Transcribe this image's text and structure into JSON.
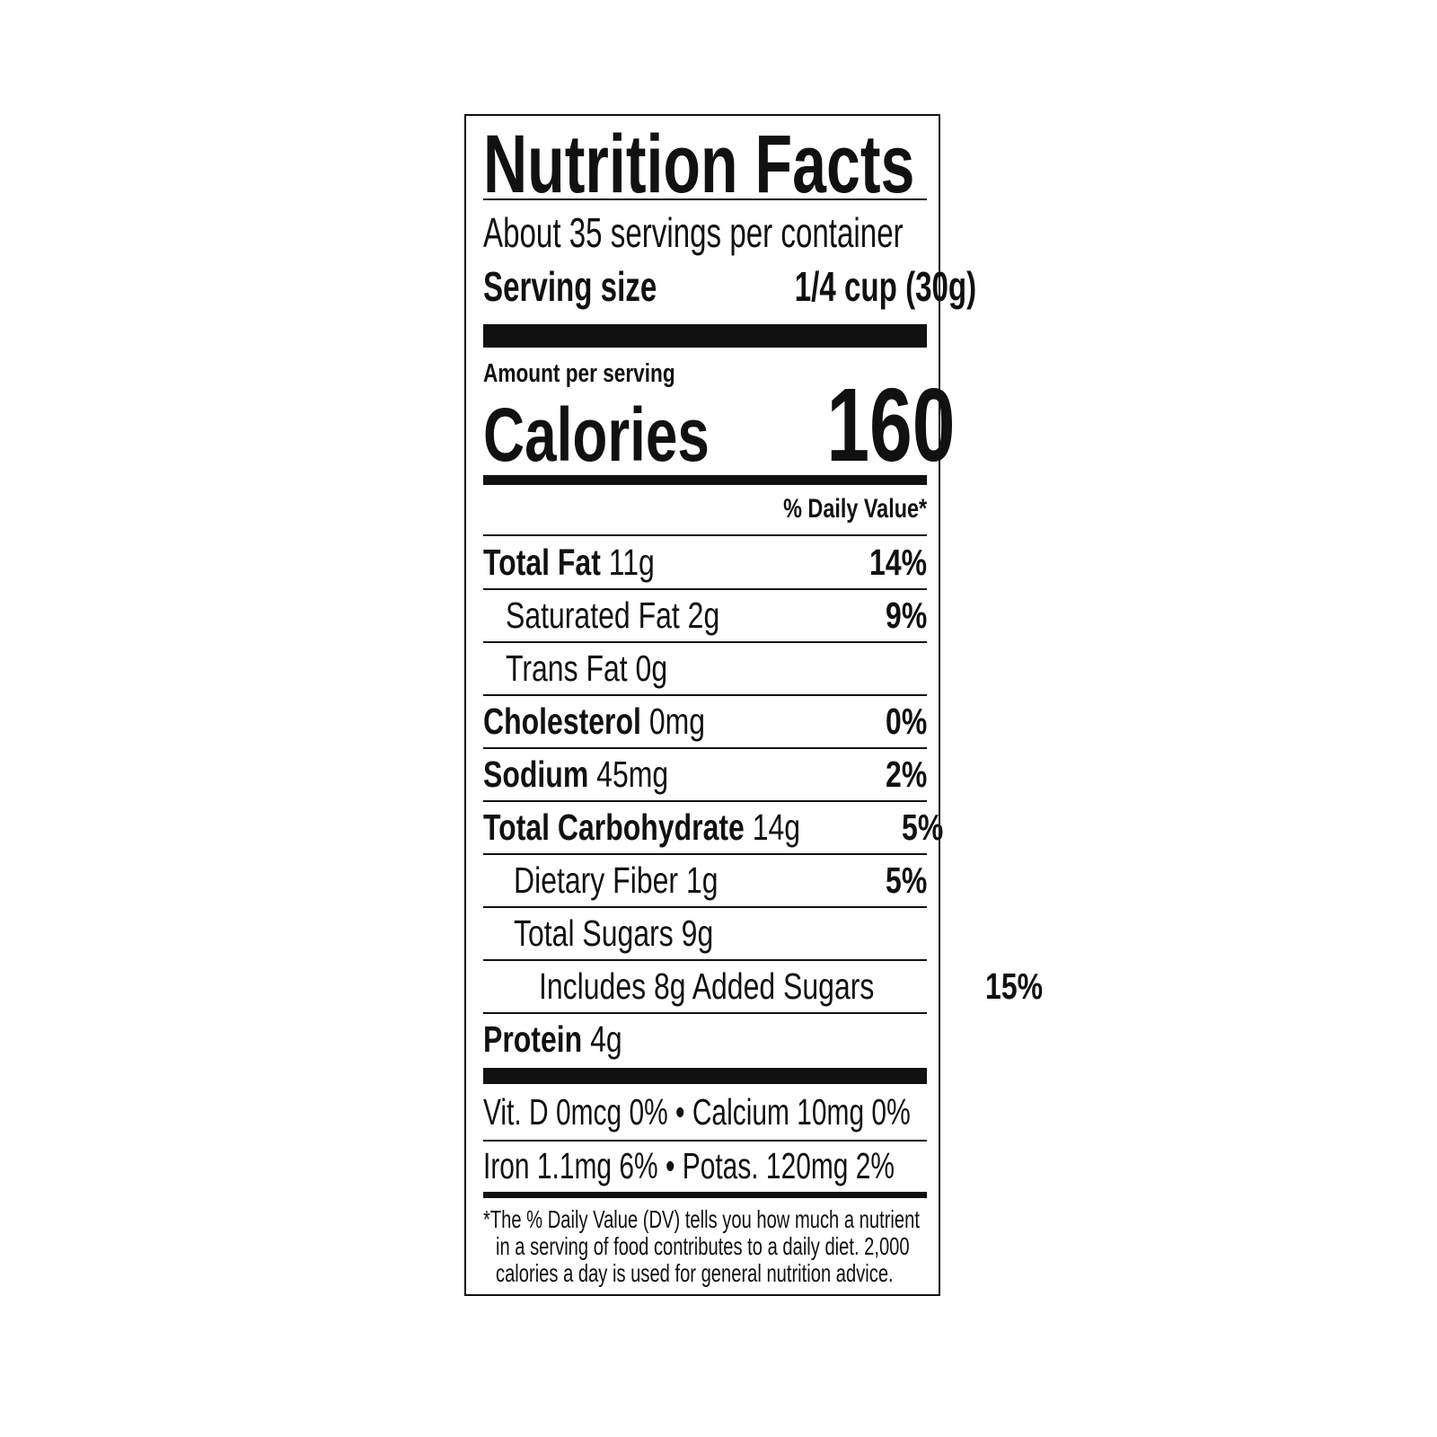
{
  "title": "Nutrition Facts",
  "servings_per_container": "About 35 servings per container",
  "serving_size": {
    "label": "Serving size",
    "value": "1/4 cup (30g)"
  },
  "amount_per_serving": "Amount per serving",
  "calories": {
    "label": "Calories",
    "value": "160"
  },
  "daily_value_header": "% Daily Value*",
  "nutrients": [
    {
      "name": "Total Fat",
      "amount": "11g",
      "dv": "14%",
      "bold": true,
      "indent": 0
    },
    {
      "name": "Saturated Fat",
      "amount": "2g",
      "dv": "9%",
      "bold": false,
      "indent": 1
    },
    {
      "name": "Trans Fat",
      "amount": "0g",
      "dv": "",
      "bold": false,
      "indent": 1
    },
    {
      "name": "Cholesterol",
      "amount": "0mg",
      "dv": "0%",
      "bold": true,
      "indent": 0
    },
    {
      "name": "Sodium",
      "amount": "45mg",
      "dv": "2%",
      "bold": true,
      "indent": 0
    },
    {
      "name": "Total Carbohydrate",
      "amount": "14g",
      "dv": "5%",
      "bold": true,
      "indent": 0
    },
    {
      "name": "Dietary Fiber",
      "amount": "1g",
      "dv": "5%",
      "bold": false,
      "indent": 2
    },
    {
      "name": "Total Sugars",
      "amount": "9g",
      "dv": "",
      "bold": false,
      "indent": 2
    },
    {
      "name": "Includes 8g Added Sugars",
      "amount": "",
      "dv": "15%",
      "bold": false,
      "indent": 3
    },
    {
      "name": "Protein",
      "amount": "4g",
      "dv": "",
      "bold": true,
      "indent": 0
    }
  ],
  "vitamins": [
    "Vit. D 0mcg 0% • Calcium 10mg 0%",
    "Iron 1.1mg 6%  •  Potas. 120mg 2%"
  ],
  "footnote": [
    "*The % Daily Value (DV) tells you how much a nutrient",
    "in a serving of food contributes to a daily diet. 2,000",
    "calories a day is used for general nutrition advice."
  ]
}
